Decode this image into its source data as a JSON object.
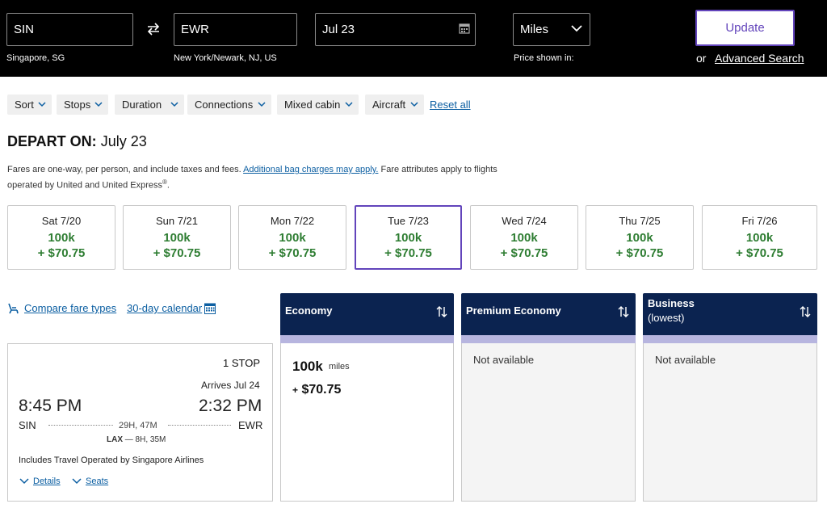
{
  "search": {
    "origin": "SIN",
    "origin_city": "Singapore, SG",
    "destination": "EWR",
    "destination_city": "New York/Newark, NJ, US",
    "date": "Jul 23",
    "currency": "Miles",
    "price_shown_in": "Price shown in:",
    "update_label": "Update",
    "or_label": "or",
    "advanced_label": "Advanced Search"
  },
  "filters": {
    "items": [
      "Sort",
      "Stops",
      "Duration",
      "Connections",
      "Mixed cabin",
      "Aircraft"
    ],
    "reset_label": "Reset all"
  },
  "depart": {
    "prefix": "DEPART ON:",
    "date": "July 23",
    "fine_1": "Fares are one-way, per person, and include taxes and fees.",
    "fine_link": "Additional bag charges may apply.",
    "fine_2": "Fare attributes apply to flights operated by United and United Express",
    "fine_reg": "®",
    "fine_end": "."
  },
  "dates": [
    {
      "day": "Sat 7/20",
      "miles": "100k",
      "tax": "+ $70.75"
    },
    {
      "day": "Sun 7/21",
      "miles": "100k",
      "tax": "+ $70.75"
    },
    {
      "day": "Mon 7/22",
      "miles": "100k",
      "tax": "+ $70.75"
    },
    {
      "day": "Tue 7/23",
      "miles": "100k",
      "tax": "+ $70.75",
      "selected": true
    },
    {
      "day": "Wed 7/24",
      "miles": "100k",
      "tax": "+ $70.75"
    },
    {
      "day": "Thu 7/25",
      "miles": "100k",
      "tax": "+ $70.75"
    },
    {
      "day": "Fri 7/26",
      "miles": "100k",
      "tax": "+ $70.75"
    }
  ],
  "links": {
    "compare": "Compare fare types",
    "calendar": "30-day calendar"
  },
  "cabins": {
    "economy": {
      "label": "Economy",
      "miles": "100k",
      "miles_unit": "miles",
      "plus": "+",
      "fee": "$70.75"
    },
    "premium": {
      "label": "Premium Economy",
      "status": "Not available"
    },
    "business": {
      "label": "Business",
      "sub": "(lowest)",
      "status": "Not available"
    }
  },
  "flight": {
    "stops": "1 STOP",
    "arrives": "Arrives Jul 24",
    "depart_time": "8:45 PM",
    "arrive_time": "2:32 PM",
    "from": "SIN",
    "to": "EWR",
    "duration": "29H, 47M",
    "layover_airport": "LAX",
    "layover_dur": "— 8H, 35M",
    "operated": "Includes Travel Operated by Singapore Airlines",
    "details": "Details",
    "seats": "Seats"
  },
  "colors": {
    "accent": "#6244bb",
    "navy": "#0b2350",
    "price_green": "#2e7d32",
    "link_blue": "#0c5fa2",
    "band": "#b7b5df"
  }
}
